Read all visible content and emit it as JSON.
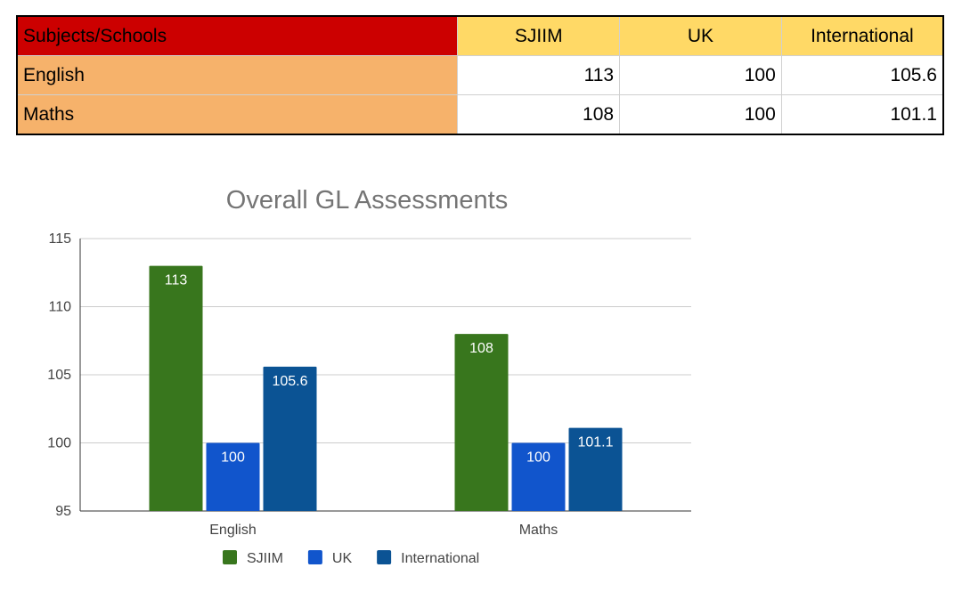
{
  "table": {
    "header": [
      "Subjects/Schools",
      "SJIIM",
      "UK",
      "International"
    ],
    "rows": [
      [
        "English",
        "113",
        "100",
        "105.6"
      ],
      [
        "Maths",
        "108",
        "100",
        "101.1"
      ]
    ]
  },
  "colors": {
    "header_corner": "#cc0000",
    "header": "#ffd966",
    "row_label": "#f6b26b"
  },
  "chart_data": {
    "type": "bar",
    "title": "Overall GL Assessments",
    "xlabel": "",
    "ylabel": "",
    "categories": [
      "English",
      "Maths"
    ],
    "series": [
      {
        "name": "SJIIM",
        "values": [
          113,
          108
        ],
        "labels": [
          "113",
          "108"
        ],
        "color": "#38761d"
      },
      {
        "name": "UK",
        "values": [
          100,
          100
        ],
        "labels": [
          "100",
          "100"
        ],
        "color": "#1155cc"
      },
      {
        "name": "International",
        "values": [
          105.6,
          101.1
        ],
        "labels": [
          "105.6",
          "101.1"
        ],
        "color": "#0b5394"
      }
    ],
    "ylim": [
      95,
      115
    ],
    "yticks": [
      "95",
      "100",
      "105",
      "110",
      "115"
    ],
    "grid": true,
    "legend": "bottom"
  }
}
